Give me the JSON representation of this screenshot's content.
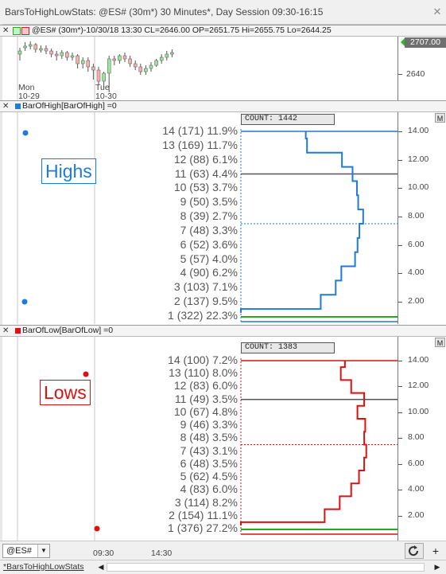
{
  "window": {
    "title": "BarsToHighLowStats: @ES# (30m*) 30 Minutes*, Day Session 09:30-16:15",
    "close_label": "✕"
  },
  "price_pane": {
    "header": "@ES# (30m*)-10/30/18 13:30 CL=2646.00 OP=2651.75 Hi=2655.75 Lo=2644.25",
    "last_price": "2707.00",
    "scale_label": "2640",
    "date_labels": [
      {
        "day": "Mon",
        "date": "10-29"
      },
      {
        "day": "Tue",
        "date": "10-30"
      }
    ],
    "colors": {
      "up": "#9be59b",
      "down": "#f5b0b0"
    }
  },
  "highs_pane": {
    "header": "BarOfHigh[BarOfHigh] =0",
    "label": "Highs",
    "count_label": "COUNT: 1442",
    "m_button": "M",
    "color": "#1e7bd8",
    "scale_ticks": [
      "14.00",
      "12.00",
      "10.00",
      "8.00",
      "6.00",
      "4.00",
      "2.00"
    ],
    "rows": [
      "14 (171) 11.9%",
      "13 (169) 11.7%",
      "12 (88) 6.1%",
      "11 (63) 4.4%",
      "10 (53) 3.7%",
      "9 (50) 3.5%",
      "8 (39) 2.7%",
      "7 (48) 3.3%",
      "6 (52) 3.6%",
      "5 (57) 4.0%",
      "4 (90) 6.2%",
      "3 (103) 7.1%",
      "2 (137) 9.5%",
      "1 (322) 22.3%"
    ],
    "percents": [
      11.9,
      11.7,
      6.1,
      4.4,
      3.7,
      3.5,
      2.7,
      3.3,
      3.6,
      4.0,
      6.2,
      7.1,
      9.5,
      22.3
    ]
  },
  "lows_pane": {
    "header": "BarOfLow[BarOfLow] =0",
    "label": "Lows",
    "count_label": "COUNT: 1383",
    "m_button": "M",
    "color": "#dd1111",
    "scale_ticks": [
      "14.00",
      "12.00",
      "10.00",
      "8.00",
      "6.00",
      "4.00",
      "2.00"
    ],
    "rows": [
      "14 (100) 7.2%",
      "13 (110) 8.0%",
      "12 (83) 6.0%",
      "11 (49) 3.5%",
      "10 (67) 4.8%",
      "9 (46) 3.3%",
      "8 (48) 3.5%",
      "7 (43) 3.1%",
      "6 (48) 3.5%",
      "5 (62) 4.5%",
      "4 (83) 6.0%",
      "3 (114) 8.2%",
      "2 (154) 11.1%",
      "1 (376) 27.2%"
    ],
    "percents": [
      7.2,
      8.0,
      6.0,
      3.5,
      4.8,
      3.3,
      3.5,
      3.1,
      3.5,
      4.5,
      6.0,
      8.2,
      11.1,
      27.2
    ]
  },
  "bottom_bar": {
    "symbol": "@ES#",
    "time_labels": [
      "09:30",
      "14:30"
    ],
    "refresh_icon": "refresh-icon",
    "add_label": "+"
  },
  "tab_bar": {
    "tab": "*BarsToHighLowStats"
  }
}
